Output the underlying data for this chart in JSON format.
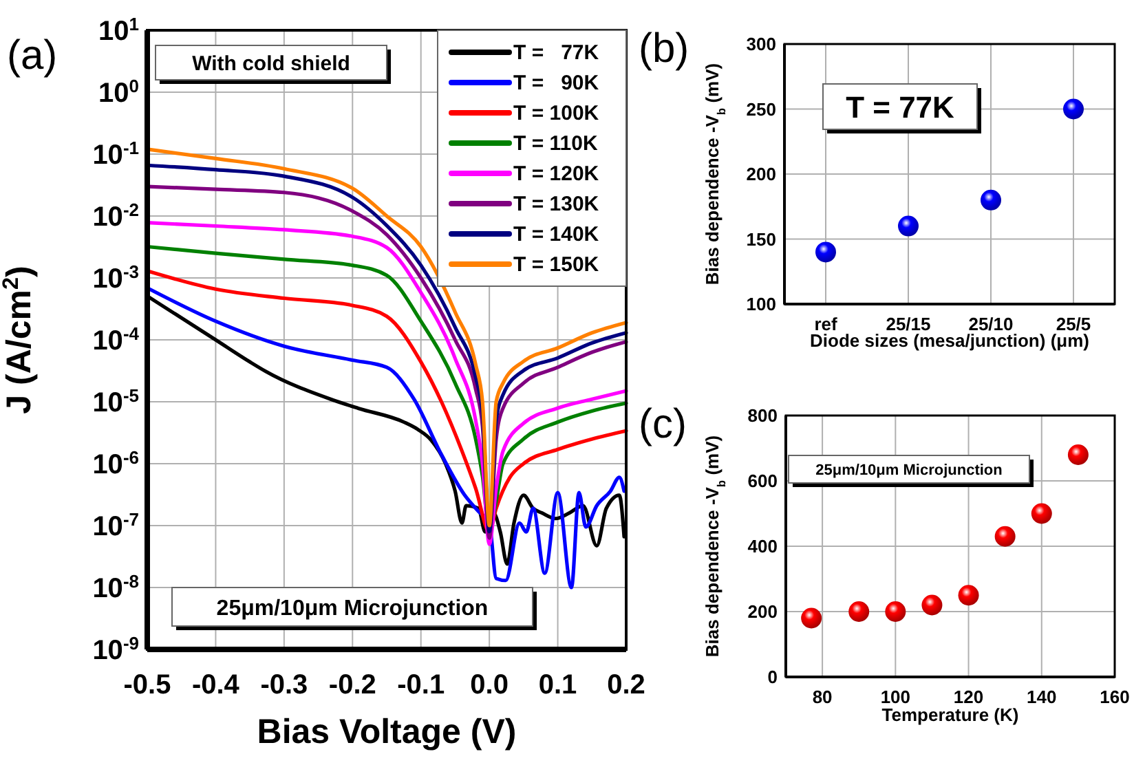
{
  "chart_data": [
    {
      "type": "line",
      "title": "(a)",
      "xlabel": "Bias Voltage (V)",
      "ylabel": "J (A/cm$^{2}$)",
      "log": "y",
      "grid": true,
      "legend": "top right",
      "xlim": [
        -0.5,
        0.2
      ],
      "xticks": [
        {
          "value": -0.5,
          "label": "-0.5"
        },
        {
          "value": -0.4,
          "label": "-0.4"
        },
        {
          "value": -0.3,
          "label": "-0.3"
        },
        {
          "value": -0.2,
          "label": "-0.2"
        },
        {
          "value": -0.1,
          "label": "-0.1"
        },
        {
          "value": 0,
          "label": "0.0"
        },
        {
          "value": 0.1,
          "label": "0.1"
        },
        {
          "value": 0.2,
          "label": "0.2"
        }
      ],
      "ylim": [
        1e-09,
        10
      ],
      "yticks": [
        {
          "value": 10,
          "label": "10$^{1}$"
        },
        {
          "value": 1,
          "label": "10$^{0}$"
        },
        {
          "value": 0.1,
          "label": "10$^{-1}$"
        },
        {
          "value": 0.01,
          "label": "10$^{-2}$"
        },
        {
          "value": 0.001,
          "label": "10$^{-3}$"
        },
        {
          "value": 0.0001,
          "label": "10$^{-4}$"
        },
        {
          "value": 1e-05,
          "label": "10$^{-5}$"
        },
        {
          "value": 1e-06,
          "label": "10$^{-6}$"
        },
        {
          "value": 1e-07,
          "label": "10$^{-7}$"
        },
        {
          "value": 1e-08,
          "label": "10$^{-8}$"
        },
        {
          "value": 1e-09,
          "label": "10$^{-9}$"
        }
      ],
      "annotations": [
        "With cold shield",
        "25μm/10μm Microjunction"
      ],
      "series": [
        {
          "name": "T =   77K",
          "color": "#000000",
          "x": [
            -0.5,
            -0.4,
            -0.35,
            -0.327,
            -0.232,
            -0.191,
            -0.125,
            -0.105,
            -0.085,
            -0.064,
            -0.05,
            -0.04,
            -0.034,
            -0.016,
            -0.006,
            0.006,
            0.016,
            0.026,
            0.036,
            0.05,
            0.064,
            0.077,
            0.097,
            0.117,
            0.137,
            0.157,
            0.171,
            0.19,
            0.197
          ],
          "values": [
            0.00051,
            0.0001,
            4.4e-05,
            3.1e-05,
            1.1e-05,
            7.8e-06,
            4.7e-06,
            3.6e-06,
            2.4e-06,
            1e-06,
            3.6e-07,
            1.1e-07,
            2.1e-07,
            1.9e-07,
            7.9e-08,
            1.6e-07,
            7.9e-08,
            2.4e-08,
            1.1e-07,
            3.1e-07,
            1.9e-07,
            1.6e-07,
            1.3e-07,
            1.6e-07,
            2.1e-07,
            4.7e-08,
            1.9e-07,
            3.1e-07,
            6.6e-08
          ]
        },
        {
          "name": "T =   90K",
          "color": "#0000ff",
          "x": [
            -0.5,
            -0.4,
            -0.3,
            -0.2,
            -0.15,
            -0.11,
            -0.07,
            -0.036,
            -0.016,
            0,
            0.01,
            0.024,
            0.044,
            0.054,
            0.064,
            0.081,
            0.1,
            0.12,
            0.131,
            0.141,
            0.157,
            0.177,
            0.19,
            0.197
          ],
          "values": [
            0.00069,
            0.0002,
            7.9e-05,
            4.7e-05,
            3.6e-05,
            1.1e-05,
            1.4e-06,
            3.1e-07,
            1.7e-07,
            1.1e-07,
            1.4e-08,
            1.3e-08,
            1.1e-07,
            7.9e-08,
            1.9e-07,
            1.7e-08,
            3.4e-07,
            1e-08,
            3.4e-07,
            9.5e-08,
            2.1e-07,
            3.6e-07,
            6e-07,
            3.6e-07
          ]
        },
        {
          "name": "T = 100K",
          "color": "#ff0000",
          "x": [
            -0.5,
            -0.4,
            -0.3,
            -0.2,
            -0.15,
            -0.1,
            -0.07,
            -0.04,
            -0.02,
            0,
            0.01,
            0.03,
            0.05,
            0.1,
            0.15,
            0.2
          ],
          "values": [
            0.0013,
            0.00066,
            0.00047,
            0.00036,
            0.00024,
            4.4e-05,
            1e-05,
            1.6e-06,
            4e-07,
            8e-08,
            1.9e-07,
            6e-07,
            1e-06,
            1.7e-06,
            2.5e-06,
            3.4e-06
          ]
        },
        {
          "name": "T = 110K",
          "color": "#008000",
          "x": [
            -0.5,
            -0.4,
            -0.3,
            -0.2,
            -0.15,
            -0.1,
            -0.05,
            -0.02,
            -0.01,
            0,
            0.01,
            0.02,
            0.05,
            0.1,
            0.15,
            0.2
          ],
          "values": [
            0.0032,
            0.0025,
            0.002,
            0.0016,
            0.0011,
            0.0002,
            2e-05,
            2.5e-06,
            6.3e-07,
            8e-08,
            2.5e-07,
            1e-06,
            2.5e-06,
            4.7e-06,
            7.1e-06,
            9.5e-06
          ]
        },
        {
          "name": "T = 120K",
          "color": "#ff00ff",
          "x": [
            -0.5,
            -0.4,
            -0.3,
            -0.2,
            -0.15,
            -0.1,
            -0.05,
            -0.02,
            -0.01,
            0,
            0.01,
            0.02,
            0.05,
            0.1,
            0.15,
            0.2
          ],
          "values": [
            0.0078,
            0.0069,
            0.006,
            0.0047,
            0.0031,
            0.00058,
            5e-05,
            5e-06,
            1e-06,
            5e-08,
            4e-07,
            1.6e-06,
            4.5e-06,
            7.9e-06,
            1.1e-05,
            1.5e-05
          ]
        },
        {
          "name": "T = 130K",
          "color": "#800080",
          "x": [
            -0.5,
            -0.4,
            -0.3,
            -0.2,
            -0.15,
            -0.1,
            -0.05,
            -0.02,
            -0.01,
            0,
            0.01,
            0.02,
            0.05,
            0.1,
            0.15,
            0.2
          ],
          "values": [
            0.03,
            0.027,
            0.024,
            0.012,
            0.005,
            0.001,
            0.0001,
            1.6e-05,
            4e-06,
            6.3e-08,
            2.5e-06,
            7.9e-06,
            2e-05,
            3.6e-05,
            6.3e-05,
            9.3e-05
          ]
        },
        {
          "name": "T = 140K",
          "color": "#000080",
          "x": [
            -0.5,
            -0.4,
            -0.3,
            -0.2,
            -0.15,
            -0.1,
            -0.05,
            -0.02,
            -0.01,
            0,
            0.01,
            0.02,
            0.05,
            0.1,
            0.15,
            0.2
          ],
          "values": [
            0.066,
            0.056,
            0.044,
            0.02,
            0.007,
            0.0016,
            0.00016,
            2.5e-05,
            6.3e-06,
            8e-08,
            5e-06,
            1.3e-05,
            3.2e-05,
            5.1e-05,
            8.9e-05,
            0.00013
          ]
        },
        {
          "name": "T = 150K",
          "color": "#ff8000",
          "x": [
            -0.5,
            -0.4,
            -0.3,
            -0.2,
            -0.15,
            -0.1,
            -0.05,
            -0.02,
            -0.01,
            0,
            0.01,
            0.02,
            0.05,
            0.1,
            0.15,
            0.2
          ],
          "values": [
            0.12,
            0.085,
            0.058,
            0.028,
            0.01,
            0.0032,
            0.00028,
            4e-05,
            1e-05,
            1e-07,
            1e-05,
            2e-05,
            4.5e-05,
            7.4e-05,
            0.00013,
            0.00019
          ]
        }
      ]
    },
    {
      "type": "scatter",
      "title": "(b)",
      "xlabel": "Diode sizes (mesa/junction) (μm)",
      "ylabel": "Bias dependence -V$_{b}$ (mV)",
      "grid": true,
      "marker": "circle",
      "categories": [
        "ref",
        "25/15",
        "25/10",
        "25/5"
      ],
      "ylim": [
        100,
        300
      ],
      "yticks": [
        100,
        150,
        200,
        250,
        300
      ],
      "annotations": [
        "T = 77K"
      ],
      "series": [
        {
          "color": "#0000ff",
          "values": [
            140,
            160,
            180,
            250
          ]
        }
      ]
    },
    {
      "type": "scatter",
      "title": "(c)",
      "xlabel": "Temperature (K)",
      "ylabel": "Bias dependence -V$_{b}$ (mV)",
      "grid": true,
      "marker": "circle",
      "xlim": [
        70,
        160
      ],
      "xticks": [
        80,
        100,
        120,
        140,
        160
      ],
      "ylim": [
        0,
        800
      ],
      "yticks": [
        0,
        200,
        400,
        600,
        800
      ],
      "annotations": [
        "25μm/10μm Microjunction"
      ],
      "series": [
        {
          "color": "#ff0000",
          "x": [
            77,
            90,
            100,
            110,
            120,
            130,
            140,
            150
          ],
          "values": [
            180,
            200,
            200,
            220,
            250,
            430,
            500,
            680
          ]
        }
      ]
    }
  ]
}
